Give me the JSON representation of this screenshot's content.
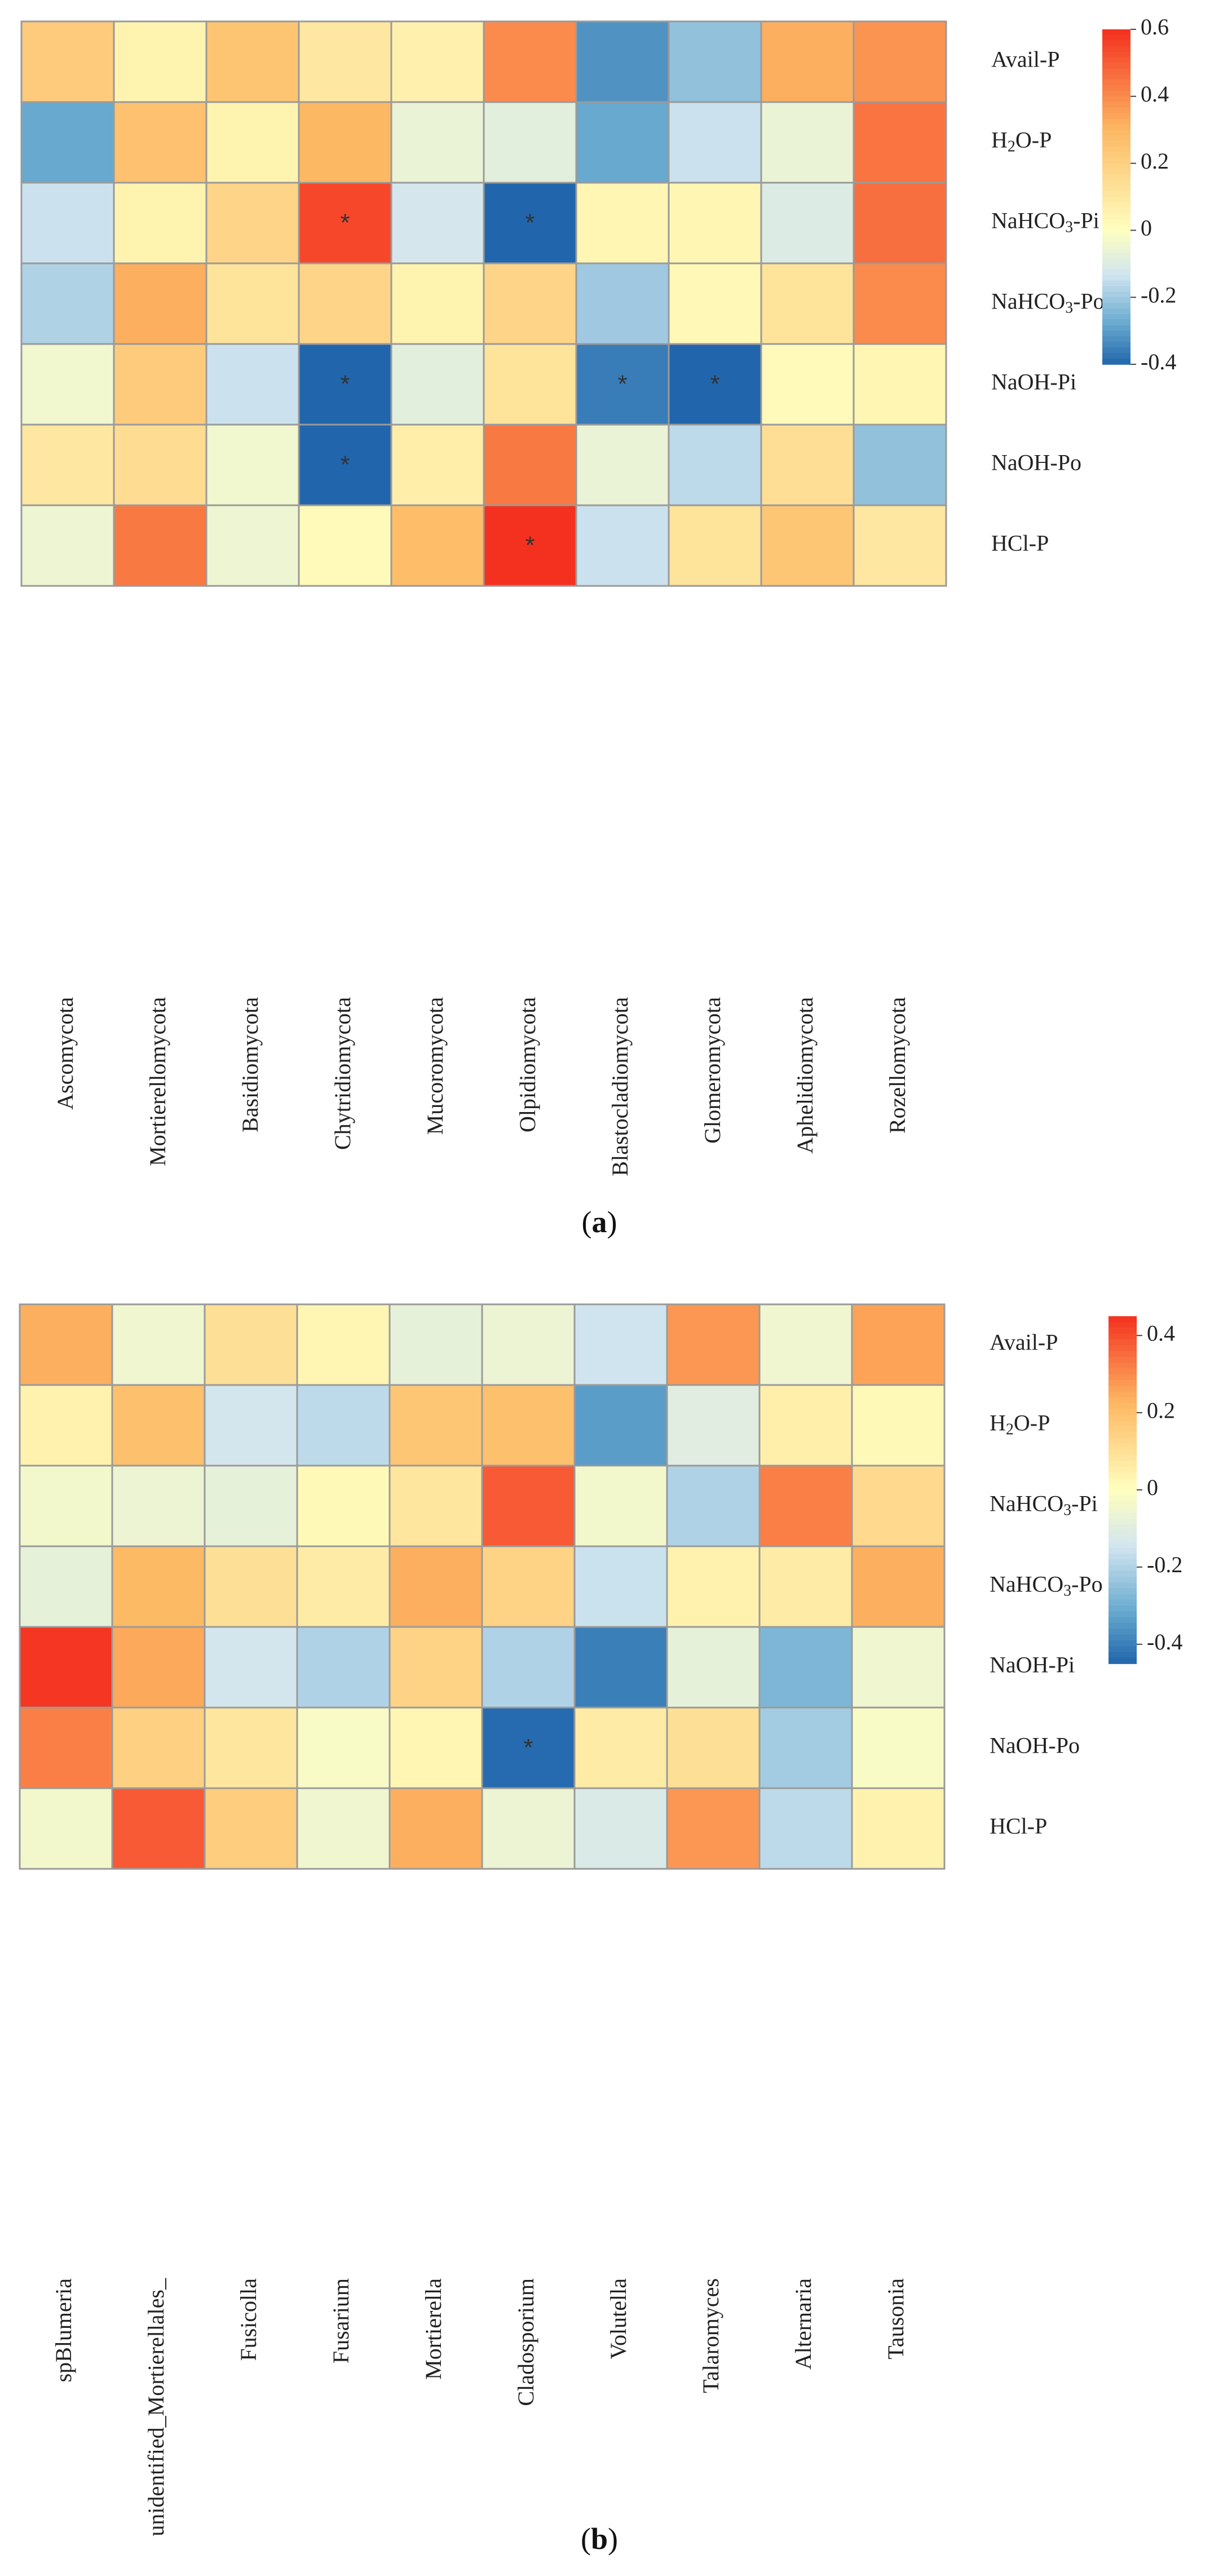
{
  "colors": {
    "low": "#2166ac",
    "mid_low": "#67a9cf",
    "mid_low2": "#d1e5f0",
    "zero": "#ffffbf",
    "mid_high": "#fdb863",
    "high": "#f4301f",
    "grid": "#9a9a9a"
  },
  "chart_data": [
    {
      "type": "heatmap",
      "panel_label_parts": [
        "(",
        "a",
        ")"
      ],
      "rows": [
        {
          "label_parts": [
            "Avail-P"
          ]
        },
        {
          "label_parts": [
            "H",
            "2",
            "O-P"
          ]
        },
        {
          "label_parts": [
            "NaHCO",
            "3",
            "-Pi"
          ]
        },
        {
          "label_parts": [
            "NaHCO",
            "3",
            "-Po"
          ]
        },
        {
          "label_parts": [
            "NaOH-Pi"
          ]
        },
        {
          "label_parts": [
            "NaOH-Po"
          ]
        },
        {
          "label_parts": [
            "HCl-P"
          ]
        }
      ],
      "columns": [
        "Ascomycota",
        "Mortierellomycota",
        "Basidiomycota",
        "Chytridiomycota",
        "Mucoromycota",
        "Olpidiomycota",
        "Blastocladiomycota",
        "Glomeromycota",
        "Aphelidiomycota",
        "Rozellomycota"
      ],
      "values": [
        [
          0.22,
          0.05,
          0.25,
          0.1,
          0.06,
          0.4,
          -0.32,
          -0.22,
          0.32,
          0.38
        ],
        [
          -0.28,
          0.26,
          0.05,
          0.3,
          -0.06,
          -0.08,
          -0.28,
          -0.14,
          -0.06,
          0.45
        ],
        [
          -0.14,
          0.05,
          0.18,
          0.55,
          -0.12,
          -0.4,
          0.04,
          0.04,
          -0.1,
          0.46
        ],
        [
          -0.18,
          0.32,
          0.12,
          0.18,
          0.05,
          0.18,
          -0.2,
          0.03,
          0.12,
          0.4
        ],
        [
          -0.04,
          0.22,
          -0.14,
          -0.42,
          -0.08,
          0.12,
          -0.36,
          -0.4,
          0.02,
          0.04
        ],
        [
          0.1,
          0.15,
          -0.04,
          -0.42,
          0.07,
          0.44,
          -0.06,
          -0.16,
          0.14,
          -0.22
        ],
        [
          -0.05,
          0.44,
          -0.05,
          0.02,
          0.28,
          0.6,
          -0.14,
          0.12,
          0.24,
          0.1
        ]
      ],
      "significance": [
        [
          "",
          "",
          "",
          "",
          "",
          "",
          "",
          "",
          "",
          ""
        ],
        [
          "",
          "",
          "",
          "",
          "",
          "",
          "",
          "",
          "",
          ""
        ],
        [
          "",
          "",
          "",
          "*",
          "",
          "*",
          "",
          "",
          "",
          ""
        ],
        [
          "",
          "",
          "",
          "",
          "",
          "",
          "",
          "",
          "",
          ""
        ],
        [
          "",
          "",
          "",
          "*",
          "",
          "",
          "*",
          "*",
          "",
          ""
        ],
        [
          "",
          "",
          "",
          "*",
          "",
          "",
          "",
          "",
          "",
          ""
        ],
        [
          "",
          "",
          "",
          "",
          "",
          "*",
          "",
          "",
          "",
          ""
        ]
      ],
      "legend": {
        "min": -0.4,
        "max": 0.6,
        "ticks": [
          {
            "value": 0.6,
            "label": "0.6"
          },
          {
            "value": 0.4,
            "label": "0.4"
          },
          {
            "value": 0.2,
            "label": "0.2"
          },
          {
            "value": 0.0,
            "label": "0"
          },
          {
            "value": -0.2,
            "label": "-0.2"
          },
          {
            "value": -0.4,
            "label": "-0.4"
          }
        ]
      }
    },
    {
      "type": "heatmap",
      "panel_label_parts": [
        "(",
        "b",
        ")"
      ],
      "rows": [
        {
          "label_parts": [
            "Avail-P"
          ]
        },
        {
          "label_parts": [
            "H",
            "2",
            "O-P"
          ]
        },
        {
          "label_parts": [
            "NaHCO",
            "3",
            "-Pi"
          ]
        },
        {
          "label_parts": [
            "NaHCO",
            "3",
            "-Po"
          ]
        },
        {
          "label_parts": [
            "NaOH-Pi"
          ]
        },
        {
          "label_parts": [
            "NaOH-Po"
          ]
        },
        {
          "label_parts": [
            "HCl-P"
          ]
        }
      ],
      "columns": [
        "spBlumeria",
        "unidentified_Mortierellales_",
        "Fusicolla",
        "Fusarium",
        "Mortierella",
        "Cladosporium",
        "Volutella",
        "Talaromyces",
        "Alternaria",
        "Tausonia"
      ],
      "values": [
        [
          0.24,
          -0.05,
          0.1,
          0.03,
          -0.08,
          -0.06,
          -0.15,
          0.28,
          -0.05,
          0.26
        ],
        [
          0.04,
          0.2,
          -0.14,
          -0.18,
          0.18,
          0.2,
          -0.34,
          -0.1,
          0.05,
          0.02
        ],
        [
          -0.04,
          -0.06,
          -0.08,
          0.02,
          0.08,
          0.38,
          -0.04,
          -0.2,
          0.32,
          0.12
        ],
        [
          -0.08,
          0.22,
          0.1,
          0.06,
          0.24,
          0.14,
          -0.16,
          0.04,
          0.06,
          0.24
        ],
        [
          0.44,
          0.25,
          -0.14,
          -0.2,
          0.14,
          -0.2,
          -0.4,
          -0.08,
          -0.28,
          -0.05
        ],
        [
          0.32,
          0.15,
          0.08,
          -0.02,
          0.03,
          -0.44,
          0.06,
          0.1,
          -0.22,
          -0.02
        ],
        [
          -0.04,
          0.38,
          0.16,
          -0.05,
          0.24,
          -0.06,
          -0.12,
          0.28,
          -0.18,
          0.04
        ]
      ],
      "significance": [
        [
          "",
          "",
          "",
          "",
          "",
          "",
          "",
          "",
          "",
          ""
        ],
        [
          "",
          "",
          "",
          "",
          "",
          "",
          "",
          "",
          "",
          ""
        ],
        [
          "",
          "",
          "",
          "",
          "",
          "",
          "",
          "",
          "",
          ""
        ],
        [
          "",
          "",
          "",
          "",
          "",
          "",
          "",
          "",
          "",
          ""
        ],
        [
          "",
          "",
          "",
          "",
          "",
          "",
          "",
          "",
          "",
          ""
        ],
        [
          "",
          "",
          "",
          "",
          "",
          "*",
          "",
          "",
          "",
          ""
        ],
        [
          "",
          "",
          "",
          "",
          "",
          "",
          "",
          "",
          "",
          ""
        ]
      ],
      "legend": {
        "min": -0.45,
        "max": 0.45,
        "ticks": [
          {
            "value": 0.4,
            "label": "0.4"
          },
          {
            "value": 0.2,
            "label": "0.2"
          },
          {
            "value": 0.0,
            "label": "0"
          },
          {
            "value": -0.2,
            "label": "-0.2"
          },
          {
            "value": -0.4,
            "label": "-0.4"
          }
        ]
      }
    }
  ]
}
